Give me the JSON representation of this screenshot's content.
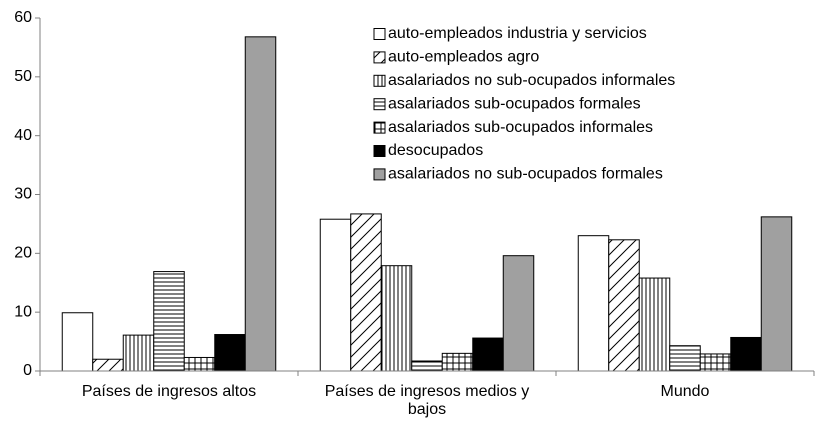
{
  "chart_data": {
    "type": "bar",
    "categories": [
      "Países de ingresos altos",
      "Países de ingresos medios y bajos",
      "Mundo"
    ],
    "series": [
      {
        "name": "auto-empleados industria y servicios",
        "color": "#ffffff",
        "hatch": "none",
        "values": [
          9.9,
          25.8,
          23
        ]
      },
      {
        "name": "auto-empleados agro",
        "color": "#ffffff",
        "hatch": "diagonal",
        "values": [
          2,
          26.7,
          22.3
        ]
      },
      {
        "name": "asalariados no sub-ocupados informales",
        "color": "#ffffff",
        "hatch": "vertical",
        "values": [
          6.1,
          17.9,
          15.8
        ]
      },
      {
        "name": "asalariados sub-ocupados formales",
        "color": "#ffffff",
        "hatch": "horizontal",
        "values": [
          16.9,
          1.7,
          4.3
        ]
      },
      {
        "name": "asalariados sub-ocupados informales",
        "color": "#ffffff",
        "hatch": "grid",
        "values": [
          2.3,
          3,
          2.9
        ]
      },
      {
        "name": "desocupados",
        "color": "#000000",
        "hatch": "none",
        "values": [
          6.2,
          5.6,
          5.7
        ]
      },
      {
        "name": "asalariados no sub-ocupados formales",
        "color": "#a0a0a0",
        "hatch": "none",
        "values": [
          56.8,
          19.6,
          26.2
        ]
      }
    ],
    "ylim": [
      0,
      60
    ],
    "yticks": [
      0,
      10,
      20,
      30,
      40,
      50,
      60
    ],
    "grid": false
  }
}
